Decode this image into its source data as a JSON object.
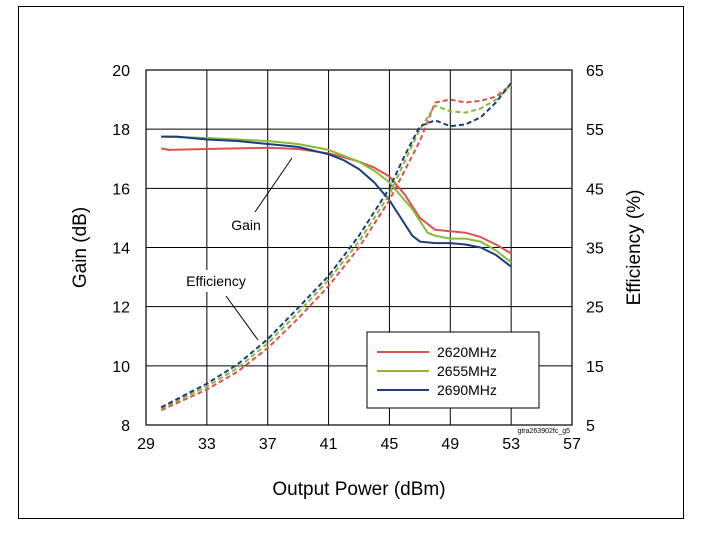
{
  "chart_data": {
    "type": "line",
    "title": "",
    "xlabel": "Output Power (dBm)",
    "ylabel": "Gain (dB)",
    "y2label": "Efficiency (%)",
    "xlim": [
      29,
      57
    ],
    "ylim": [
      8,
      20
    ],
    "y2lim": [
      5,
      65
    ],
    "xticks": [
      29,
      33,
      37,
      41,
      45,
      49,
      53,
      57
    ],
    "yticks": [
      8,
      10,
      12,
      14,
      16,
      18,
      20
    ],
    "y2ticks": [
      5,
      15,
      25,
      35,
      45,
      55,
      65
    ],
    "grid": true,
    "legend_position": "bottom-right",
    "annotations": [
      "Gain",
      "Efficiency"
    ],
    "figure_code": "gtra263902fc_g5",
    "series": [
      {
        "name": "2620MHz",
        "color": "#d9534f",
        "metric": "gain",
        "axis": "left",
        "x": [
          30,
          30.5,
          33,
          35,
          37,
          39,
          41,
          42,
          43,
          44,
          45,
          46,
          47,
          47.5,
          48,
          49,
          50,
          51,
          52,
          53
        ],
        "y": [
          17.35,
          17.3,
          17.33,
          17.35,
          17.37,
          17.33,
          17.18,
          17.05,
          16.9,
          16.7,
          16.4,
          15.8,
          15.0,
          14.8,
          14.6,
          14.55,
          14.5,
          14.35,
          14.1,
          13.8
        ]
      },
      {
        "name": "2655MHz",
        "color": "#8ab83a",
        "metric": "gain",
        "axis": "left",
        "x": [
          30,
          33,
          35,
          37,
          39,
          41,
          42,
          43,
          44,
          45,
          46,
          46.5,
          47,
          47.5,
          48,
          49,
          50,
          51,
          52,
          53
        ],
        "y": [
          17.75,
          17.7,
          17.65,
          17.6,
          17.5,
          17.3,
          17.1,
          16.9,
          16.6,
          16.2,
          15.6,
          15.3,
          14.9,
          14.5,
          14.4,
          14.3,
          14.3,
          14.2,
          13.9,
          13.5
        ]
      },
      {
        "name": "2690MHz",
        "color": "#1c3f7a",
        "metric": "gain",
        "axis": "left",
        "x": [
          30,
          31,
          33,
          35,
          37,
          39,
          41,
          42,
          43,
          44,
          45,
          46,
          46.5,
          47,
          48,
          49,
          50,
          51,
          52,
          53
        ],
        "y": [
          17.75,
          17.75,
          17.65,
          17.6,
          17.5,
          17.4,
          17.15,
          16.95,
          16.65,
          16.2,
          15.6,
          14.8,
          14.4,
          14.2,
          14.15,
          14.15,
          14.1,
          14.0,
          13.75,
          13.35
        ]
      },
      {
        "name": "2620MHz",
        "color": "#d9534f",
        "metric": "efficiency",
        "axis": "right",
        "x": [
          30,
          33,
          35,
          37,
          39,
          41,
          43,
          45,
          46,
          47,
          48,
          49,
          50,
          51,
          52,
          53
        ],
        "y": [
          7.5,
          11,
          14,
          18,
          23,
          28.5,
          35,
          43,
          48,
          53,
          59.5,
          60,
          59.5,
          59.8,
          60.5,
          62.5
        ]
      },
      {
        "name": "2655MHz",
        "color": "#8ab83a",
        "metric": "efficiency",
        "axis": "right",
        "x": [
          30,
          33,
          35,
          37,
          39,
          41,
          43,
          45,
          46,
          47,
          48,
          49,
          50,
          51,
          52,
          53
        ],
        "y": [
          7.8,
          11.5,
          14.6,
          18.8,
          24,
          29.5,
          36,
          44,
          49.5,
          55,
          59,
          58,
          57.8,
          58.5,
          60,
          62.5
        ]
      },
      {
        "name": "2690MHz",
        "color": "#1c3f7a",
        "metric": "efficiency",
        "axis": "right",
        "x": [
          30,
          33,
          35,
          37,
          39,
          41,
          43,
          45,
          46,
          47,
          48,
          49,
          50,
          51,
          52,
          53
        ],
        "y": [
          8,
          12,
          15.2,
          19.5,
          24.8,
          30.2,
          37,
          45,
          50.5,
          55.5,
          56.5,
          55.5,
          55.8,
          57,
          59.5,
          62.8
        ]
      }
    ],
    "legend": [
      "2620MHz",
      "2655MHz",
      "2690MHz"
    ]
  }
}
